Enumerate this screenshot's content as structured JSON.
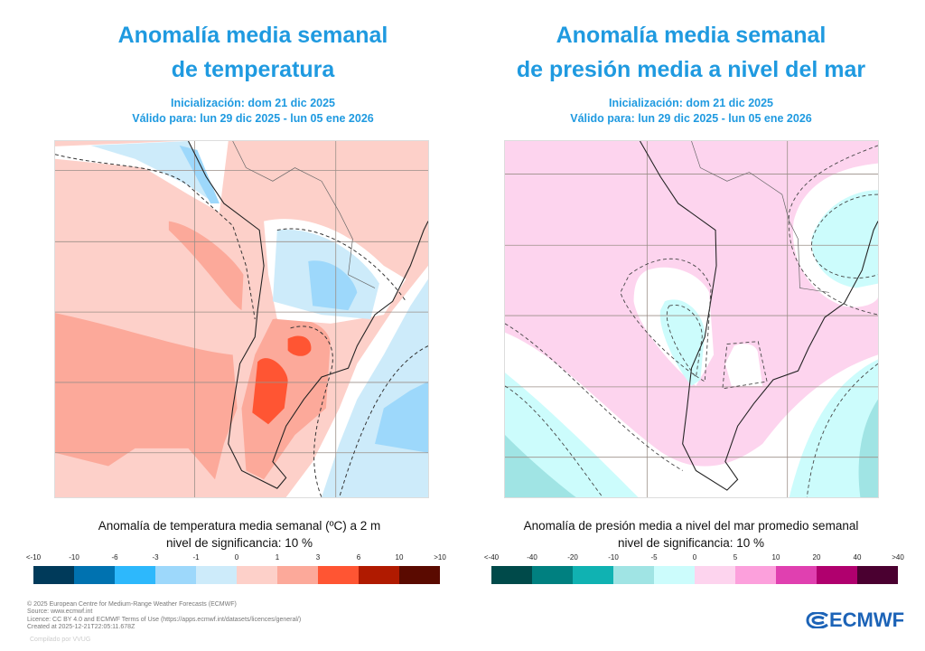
{
  "left": {
    "title_line1": "Anomalía media semanal",
    "title_line2": "de temperatura",
    "init": "Inicialización: dom 21 dic 2025",
    "valid": "Válido para: lun 29 dic 2025 - lun 05 ene 2026",
    "colorbar_title": "Anomalía de temperatura media semanal (ºC) a 2 m",
    "significance": "nivel de significancia: 10 %",
    "ticks": [
      "<-10",
      "-10",
      "-6",
      "-3",
      "-1",
      "0",
      "1",
      "3",
      "6",
      "10",
      ">10"
    ],
    "colors": [
      "#003a5a",
      "#0072b0",
      "#2db8fc",
      "#9dd8fb",
      "#cdebfa",
      "#fdd0c9",
      "#fca99a",
      "#ff5533",
      "#b01a00",
      "#5a0a00"
    ]
  },
  "right": {
    "title_line1": "Anomalía media semanal",
    "title_line2": "de presión media a nivel del mar",
    "init": "Inicialización: dom 21 dic 2025",
    "valid": "Válido para: lun 29 dic 2025 - lun 05 ene 2026",
    "colorbar_title": "Anomalía de presión media a nivel del mar promedio semanal",
    "significance": "nivel de significancia: 10 %",
    "ticks": [
      "<-40",
      "-40",
      "-20",
      "-10",
      "-5",
      "0",
      "5",
      "10",
      "20",
      "40",
      ">40"
    ],
    "colors": [
      "#004a4a",
      "#008080",
      "#10b2b2",
      "#a0e4e4",
      "#ccfcfc",
      "#fdd4ee",
      "#fca0dc",
      "#e040b0",
      "#b0006e",
      "#4a0030"
    ]
  },
  "footer": {
    "copyright": "© 2025 European Centre for Medium-Range Weather Forecasts (ECMWF)",
    "source": "Source: www.ecmwf.int",
    "licence": "Licence: CC BY 4.0 and ECMWF Terms of Use (https://apps.ecmwf.int/datasets/licences/general/)",
    "created": "Created at 2025-12-21T22:05:11.678Z",
    "compiled": "Compilado por VVUG"
  },
  "logo": {
    "text": "ECMWF"
  }
}
